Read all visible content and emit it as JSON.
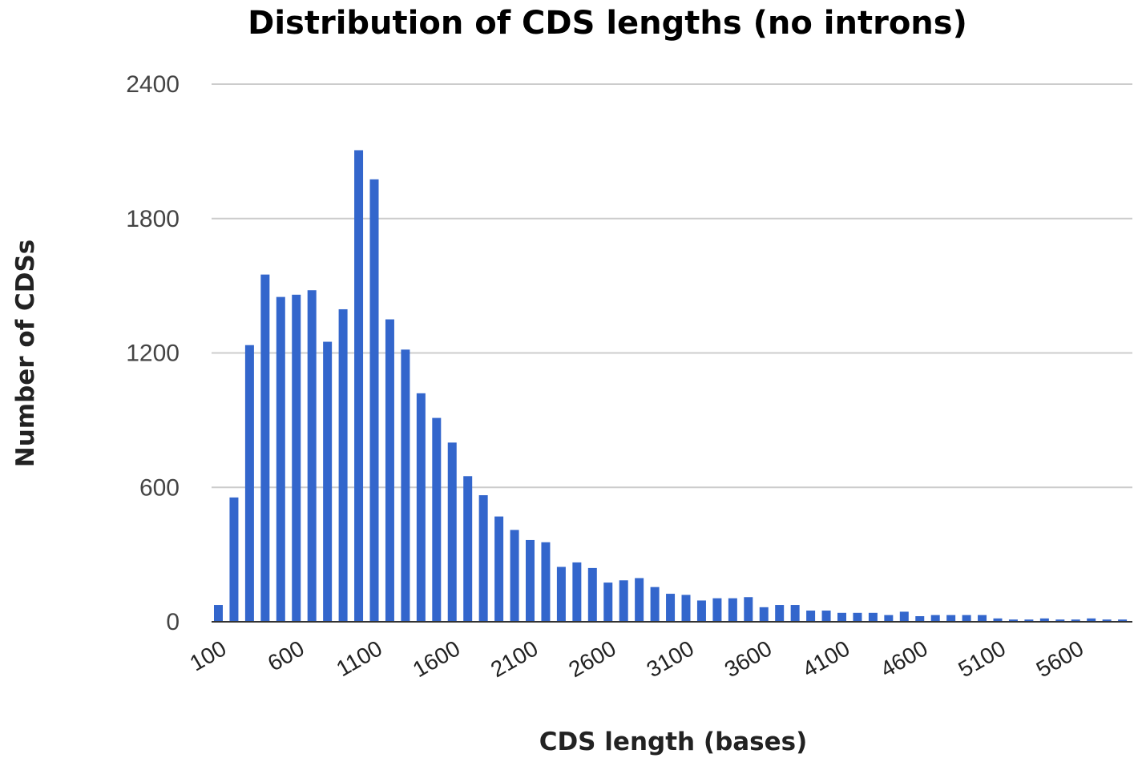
{
  "chart_data": {
    "type": "bar",
    "title": "Distribution of CDS lengths (no introns)",
    "xlabel": "CDS length (bases)",
    "ylabel": "Number of CDSs",
    "ylim": [
      0,
      2400
    ],
    "yticks": [
      "0",
      "600",
      "1200",
      "1800",
      "2400"
    ],
    "xtick_labels": [
      "100",
      "600",
      "1100",
      "1600",
      "2100",
      "2600",
      "3100",
      "3600",
      "4100",
      "4600",
      "5100",
      "5600"
    ],
    "grid": true,
    "legend": "none",
    "bar_color": "#3366cc",
    "categories": [
      100,
      200,
      300,
      400,
      500,
      600,
      700,
      800,
      900,
      1000,
      1100,
      1200,
      1300,
      1400,
      1500,
      1600,
      1700,
      1800,
      1900,
      2000,
      2100,
      2200,
      2300,
      2400,
      2500,
      2600,
      2700,
      2800,
      2900,
      3000,
      3100,
      3200,
      3300,
      3400,
      3500,
      3600,
      3700,
      3800,
      3900,
      4000,
      4100,
      4200,
      4300,
      4400,
      4500,
      4600,
      4700,
      4800,
      4900,
      5000,
      5100,
      5200,
      5300,
      5400,
      5500,
      5600,
      5700,
      5800,
      5900
    ],
    "values": [
      75,
      555,
      1235,
      1550,
      1450,
      1460,
      1480,
      1250,
      1395,
      2105,
      1975,
      1350,
      1215,
      1020,
      910,
      800,
      650,
      565,
      470,
      410,
      365,
      355,
      245,
      265,
      240,
      175,
      185,
      195,
      155,
      125,
      120,
      95,
      105,
      105,
      110,
      65,
      75,
      75,
      50,
      50,
      40,
      40,
      40,
      30,
      45,
      25,
      30,
      30,
      30,
      30,
      15,
      10,
      10,
      15,
      10,
      10,
      15,
      10,
      10
    ]
  }
}
